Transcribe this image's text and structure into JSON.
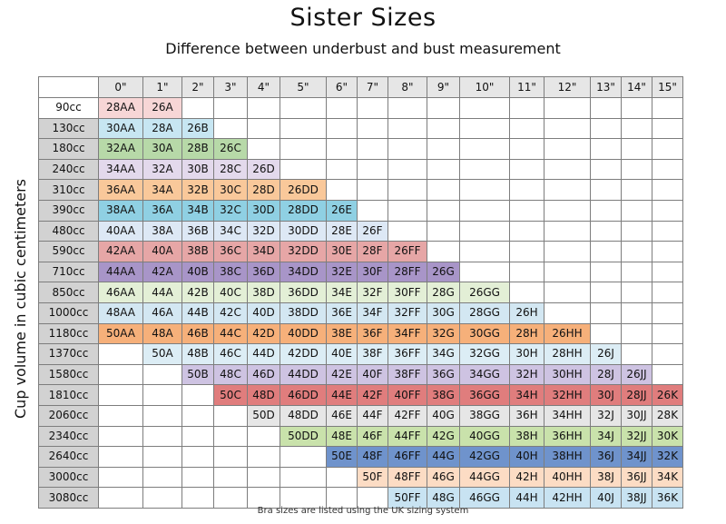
{
  "title": "Sister Sizes",
  "subtitle": "Difference between underbust and bust measurement",
  "y_axis_label": "Cup volume in cubic centimeters",
  "footnote": "Bra sizes are listed using the UK sizing system",
  "columns": [
    "0\"",
    "1\"",
    "2\"",
    "3\"",
    "4\"",
    "5\"",
    "6\"",
    "7\"",
    "8\"",
    "9\"",
    "10\"",
    "11\"",
    "12\"",
    "13\"",
    "14\"",
    "15\""
  ],
  "rows": [
    {
      "volume": "90cc",
      "start": 0,
      "sizes": [
        "28AA",
        "26A"
      ]
    },
    {
      "volume": "130cc",
      "start": 0,
      "sizes": [
        "30AA",
        "28A",
        "26B"
      ]
    },
    {
      "volume": "180cc",
      "start": 0,
      "sizes": [
        "32AA",
        "30A",
        "28B",
        "26C"
      ]
    },
    {
      "volume": "240cc",
      "start": 0,
      "sizes": [
        "34AA",
        "32A",
        "30B",
        "28C",
        "26D"
      ]
    },
    {
      "volume": "310cc",
      "start": 0,
      "sizes": [
        "36AA",
        "34A",
        "32B",
        "30C",
        "28D",
        "26DD"
      ]
    },
    {
      "volume": "390cc",
      "start": 0,
      "sizes": [
        "38AA",
        "36A",
        "34B",
        "32C",
        "30D",
        "28DD",
        "26E"
      ]
    },
    {
      "volume": "480cc",
      "start": 0,
      "sizes": [
        "40AA",
        "38A",
        "36B",
        "34C",
        "32D",
        "30DD",
        "28E",
        "26F"
      ]
    },
    {
      "volume": "590cc",
      "start": 0,
      "sizes": [
        "42AA",
        "40A",
        "38B",
        "36C",
        "34D",
        "32DD",
        "30E",
        "28F",
        "26FF"
      ]
    },
    {
      "volume": "710cc",
      "start": 0,
      "sizes": [
        "44AA",
        "42A",
        "40B",
        "38C",
        "36D",
        "34DD",
        "32E",
        "30F",
        "28FF",
        "26G"
      ]
    },
    {
      "volume": "850cc",
      "start": 0,
      "sizes": [
        "46AA",
        "44A",
        "42B",
        "40C",
        "38D",
        "36DD",
        "34E",
        "32F",
        "30FF",
        "28G",
        "26GG"
      ]
    },
    {
      "volume": "1000cc",
      "start": 0,
      "sizes": [
        "48AA",
        "46A",
        "44B",
        "42C",
        "40D",
        "38DD",
        "36E",
        "34F",
        "32FF",
        "30G",
        "28GG",
        "26H"
      ]
    },
    {
      "volume": "1180cc",
      "start": 0,
      "sizes": [
        "50AA",
        "48A",
        "46B",
        "44C",
        "42D",
        "40DD",
        "38E",
        "36F",
        "34FF",
        "32G",
        "30GG",
        "28H",
        "26HH"
      ]
    },
    {
      "volume": "1370cc",
      "start": 1,
      "sizes": [
        "50A",
        "48B",
        "46C",
        "44D",
        "42DD",
        "40E",
        "38F",
        "36FF",
        "34G",
        "32GG",
        "30H",
        "28HH",
        "26J"
      ]
    },
    {
      "volume": "1580cc",
      "start": 2,
      "sizes": [
        "50B",
        "48C",
        "46D",
        "44DD",
        "42E",
        "40F",
        "38FF",
        "36G",
        "34GG",
        "32H",
        "30HH",
        "28J",
        "26JJ"
      ]
    },
    {
      "volume": "1810cc",
      "start": 3,
      "sizes": [
        "50C",
        "48D",
        "46DD",
        "44E",
        "42F",
        "40FF",
        "38G",
        "36GG",
        "34H",
        "32HH",
        "30J",
        "28JJ",
        "26K"
      ]
    },
    {
      "volume": "2060cc",
      "start": 4,
      "sizes": [
        "50D",
        "48DD",
        "46E",
        "44F",
        "42FF",
        "40G",
        "38GG",
        "36H",
        "34HH",
        "32J",
        "30JJ",
        "28K"
      ]
    },
    {
      "volume": "2340cc",
      "start": 5,
      "sizes": [
        "50DD",
        "48E",
        "46F",
        "44FF",
        "42G",
        "40GG",
        "38H",
        "36HH",
        "34J",
        "32JJ",
        "30K"
      ]
    },
    {
      "volume": "2640cc",
      "start": 6,
      "sizes": [
        "50E",
        "48F",
        "46FF",
        "44G",
        "42GG",
        "40H",
        "38HH",
        "36J",
        "34JJ",
        "32K"
      ]
    },
    {
      "volume": "3000cc",
      "start": 7,
      "sizes": [
        "50F",
        "48FF",
        "46G",
        "44GG",
        "42H",
        "40HH",
        "38J",
        "36JJ",
        "34K"
      ]
    },
    {
      "volume": "3080cc",
      "start": 8,
      "sizes": [
        "50FF",
        "48G",
        "46GG",
        "44H",
        "42HH",
        "40J",
        "38JJ",
        "36K"
      ]
    }
  ],
  "row_colors": [
    "#f7d6d6",
    "#c7e6f2",
    "#b7d9a8",
    "#e3d9ec",
    "#f9c89a",
    "#8fd0e3",
    "#dde8f5",
    "#e6a6a6",
    "#a895c8",
    "#e3efd6",
    "#d3e7f2",
    "#f6b07a",
    "#dcedf5",
    "#cec3e2",
    "#e07d7d",
    "#e6e6e6",
    "#c9e2ab",
    "#6f93cc",
    "#fcdcc4",
    "#c8e3f2"
  ],
  "column_widths": [
    66,
    49,
    43,
    35,
    37,
    36,
    51,
    34,
    34,
    43,
    36,
    55,
    38,
    51,
    34,
    34,
    34
  ]
}
